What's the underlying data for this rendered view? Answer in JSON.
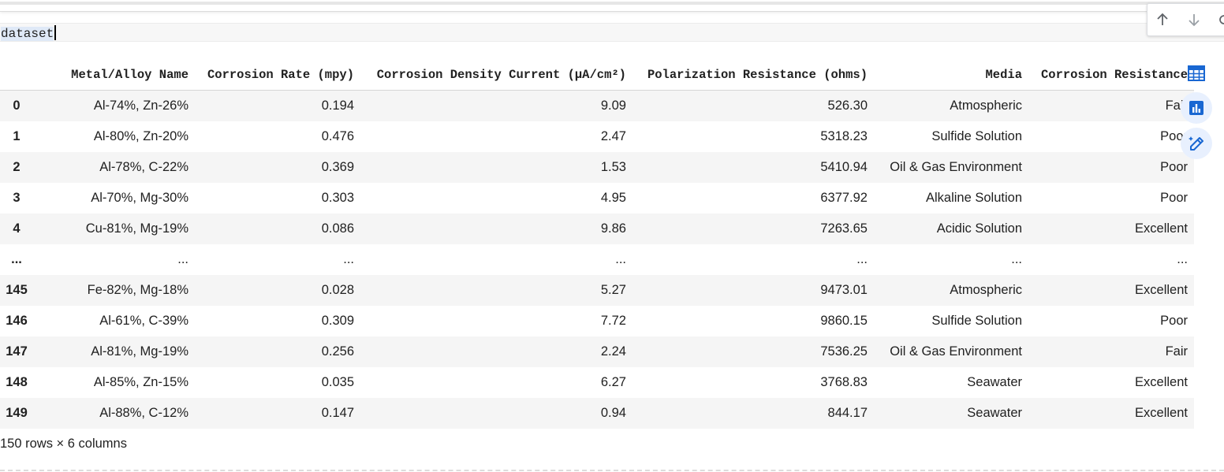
{
  "code_cell": {
    "text": "dataset"
  },
  "toolbar": {
    "up_icon": "arrow-up-icon",
    "down_icon": "arrow-down-icon",
    "more_icon": "link-icon"
  },
  "table": {
    "columns": [
      "",
      "Metal/Alloy Name",
      "Corrosion Rate (mpy)",
      "Corrosion Density Current (µA/cm²)",
      "Polarization Resistance (ohms)",
      "Media",
      "Corrosion Resistance"
    ],
    "rows": [
      [
        "0",
        "Al-74%, Zn-26%",
        "0.194",
        "9.09",
        "526.30",
        "Atmospheric",
        "Fair"
      ],
      [
        "1",
        "Al-80%, Zn-20%",
        "0.476",
        "2.47",
        "5318.23",
        "Sulfide Solution",
        "Poor"
      ],
      [
        "2",
        "Al-78%, C-22%",
        "0.369",
        "1.53",
        "5410.94",
        "Oil & Gas Environment",
        "Poor"
      ],
      [
        "3",
        "Al-70%, Mg-30%",
        "0.303",
        "4.95",
        "6377.92",
        "Alkaline Solution",
        "Poor"
      ],
      [
        "4",
        "Cu-81%, Mg-19%",
        "0.086",
        "9.86",
        "7263.65",
        "Acidic Solution",
        "Excellent"
      ],
      [
        "...",
        "...",
        "...",
        "...",
        "...",
        "...",
        "..."
      ],
      [
        "145",
        "Fe-82%, Mg-18%",
        "0.028",
        "5.27",
        "9473.01",
        "Atmospheric",
        "Excellent"
      ],
      [
        "146",
        "Al-61%, C-39%",
        "0.309",
        "7.72",
        "9860.15",
        "Sulfide Solution",
        "Poor"
      ],
      [
        "147",
        "Al-81%, Mg-19%",
        "0.256",
        "2.24",
        "7536.25",
        "Oil & Gas Environment",
        "Fair"
      ],
      [
        "148",
        "Al-85%, Zn-15%",
        "0.035",
        "6.27",
        "3768.83",
        "Seawater",
        "Excellent"
      ],
      [
        "149",
        "Al-88%, C-12%",
        "0.147",
        "0.94",
        "844.17",
        "Seawater",
        "Excellent"
      ]
    ]
  },
  "footer": {
    "shape_text": "150 rows × 6 columns"
  },
  "side_actions": [
    {
      "icon": "table-icon"
    },
    {
      "icon": "bar-chart-icon"
    },
    {
      "icon": "magic-pen-icon"
    }
  ],
  "colors": {
    "accent": "#1967d2",
    "accent_bg": "#e8f0fe",
    "stripe": "#f5f5f5"
  }
}
